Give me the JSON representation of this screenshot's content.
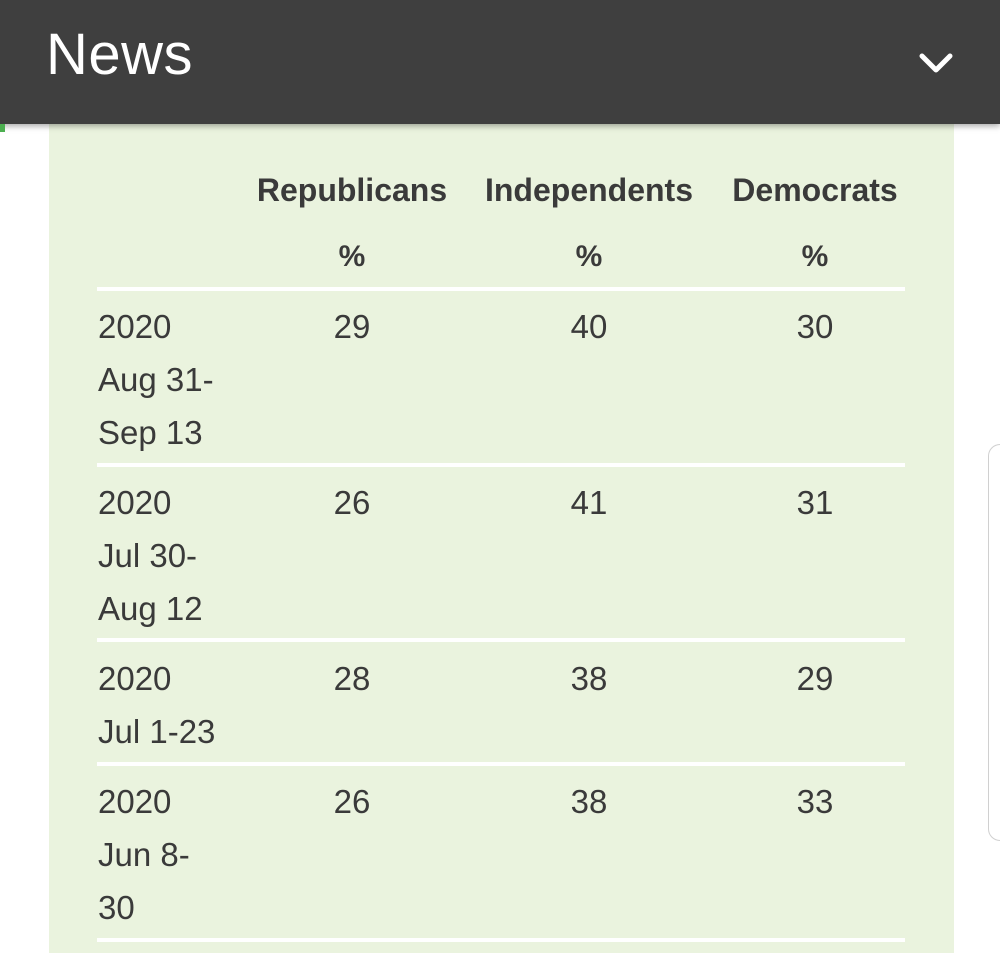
{
  "header": {
    "title": "News",
    "toggle_icon": "chevron-down-icon"
  },
  "table": {
    "columns": [
      {
        "name": "Republicans",
        "unit": "%"
      },
      {
        "name": "Independents",
        "unit": "%"
      },
      {
        "name": "Democrats",
        "unit": "%"
      }
    ],
    "rows": [
      {
        "date_lines": [
          "2020",
          "Aug 31-",
          "Sep 13"
        ],
        "values": [
          "29",
          "40",
          "30"
        ]
      },
      {
        "date_lines": [
          "2020",
          "Jul 30-",
          "Aug 12"
        ],
        "values": [
          "26",
          "41",
          "31"
        ]
      },
      {
        "date_lines": [
          "2020",
          "Jul 1-23"
        ],
        "values": [
          "28",
          "38",
          "29"
        ]
      },
      {
        "date_lines": [
          "2020",
          "Jun 8-",
          "30"
        ],
        "values": [
          "26",
          "38",
          "33"
        ]
      }
    ]
  },
  "colors": {
    "header_bg": "#3f3f3f",
    "panel_bg": "#eaf3de",
    "accent": "#4caf50"
  }
}
